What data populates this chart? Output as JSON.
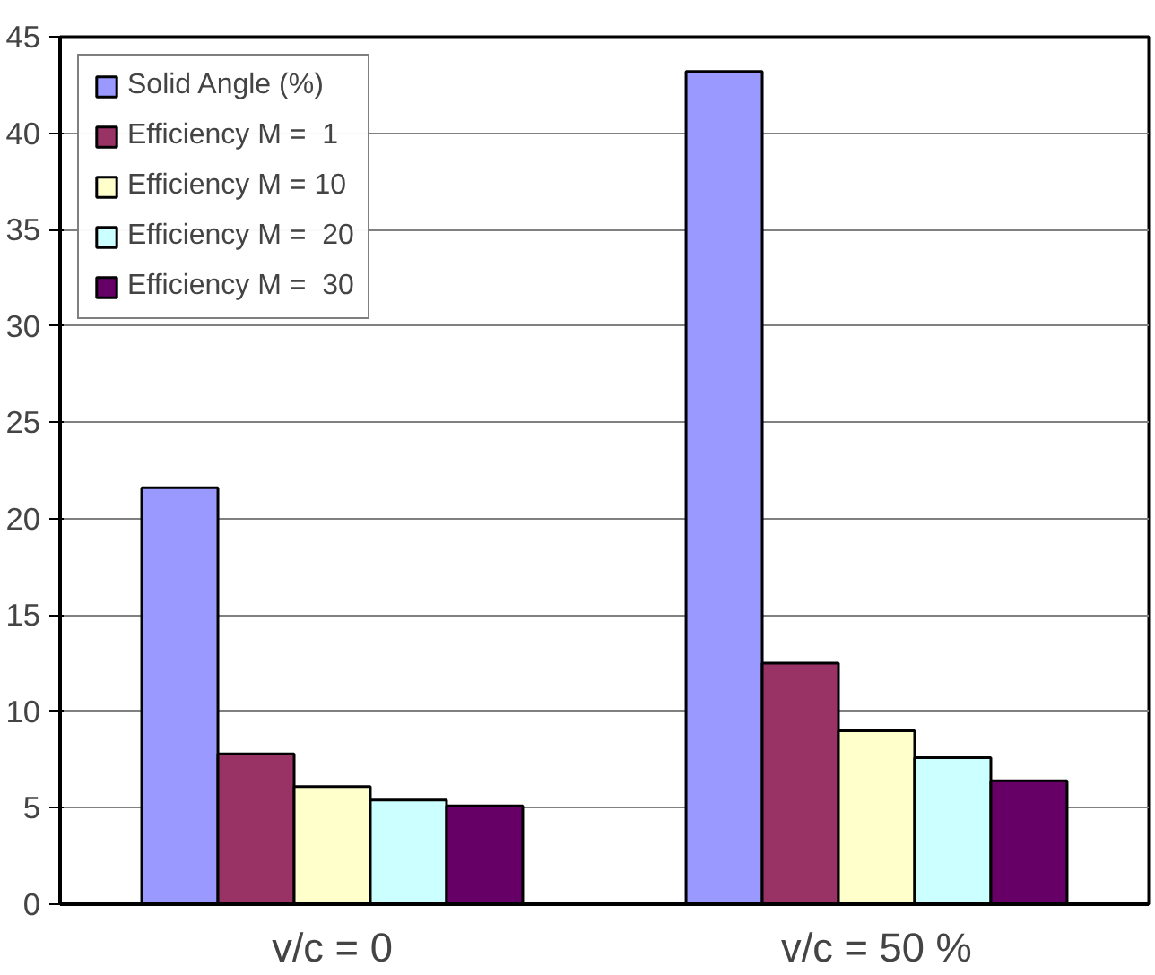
{
  "chart_data": {
    "type": "bar",
    "categories": [
      "v/c = 0",
      "v/c = 50 %"
    ],
    "series": [
      {
        "name": "Solid Angle (%)",
        "color": "#9999ff",
        "values": [
          21.6,
          43.2
        ]
      },
      {
        "name": "Efficiency M =  1",
        "color": "#993366",
        "values": [
          7.8,
          12.5
        ]
      },
      {
        "name": "Efficiency M = 10",
        "color": "#ffffcc",
        "values": [
          6.1,
          9.0
        ]
      },
      {
        "name": "Efficiency M =  20",
        "color": "#ccffff",
        "values": [
          5.4,
          7.6
        ]
      },
      {
        "name": "Efficiency M =  30",
        "color": "#660066",
        "values": [
          5.1,
          6.4
        ]
      }
    ],
    "ylim": [
      0,
      45
    ],
    "yticks": [
      0,
      5,
      10,
      15,
      20,
      25,
      30,
      35,
      40,
      45
    ],
    "grid": "y",
    "legend": "top left"
  }
}
